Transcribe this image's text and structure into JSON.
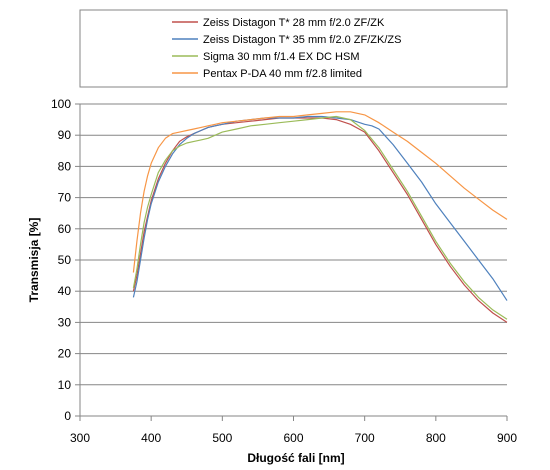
{
  "chart_data": {
    "type": "line",
    "xlabel": "Długość fali [nm]",
    "ylabel": "Transmisja [%]",
    "xlim": [
      300,
      900
    ],
    "ylim": [
      0,
      100
    ],
    "x_ticks": [
      300,
      400,
      500,
      600,
      700,
      800,
      900
    ],
    "y_ticks": [
      0,
      10,
      20,
      30,
      40,
      50,
      60,
      70,
      80,
      90,
      100
    ],
    "grid": "horizontal",
    "legend_position": "top",
    "series": [
      {
        "name": "Zeiss Distagon  T* 28 mm f/2.0 ZF/ZK",
        "color": "#c0504d",
        "x": [
          375,
          380,
          385,
          390,
          395,
          400,
          410,
          420,
          430,
          440,
          450,
          460,
          470,
          480,
          490,
          500,
          520,
          540,
          560,
          580,
          600,
          620,
          640,
          660,
          680,
          700,
          720,
          740,
          760,
          780,
          800,
          820,
          840,
          860,
          880,
          900
        ],
        "y": [
          40,
          45,
          52,
          59,
          64,
          69,
          76,
          81,
          85,
          88,
          89.5,
          90.5,
          91.5,
          92.5,
          93,
          93.5,
          94,
          94.5,
          95,
          95.5,
          95.5,
          95.5,
          95.5,
          95,
          93.5,
          91,
          85,
          78,
          71,
          63,
          55,
          48,
          42,
          37,
          33,
          30
        ]
      },
      {
        "name": "Zeiss Distagon  T* 35 mm f/2.0 ZF/ZK/ZS",
        "color": "#4f81bd",
        "x": [
          375,
          380,
          385,
          390,
          395,
          400,
          410,
          420,
          430,
          440,
          450,
          460,
          470,
          480,
          490,
          500,
          520,
          540,
          560,
          580,
          600,
          620,
          640,
          660,
          680,
          700,
          710,
          720,
          740,
          760,
          780,
          800,
          820,
          840,
          860,
          880,
          900
        ],
        "y": [
          38,
          43,
          50,
          57,
          63,
          68,
          75,
          80,
          84,
          87,
          89,
          90.5,
          91.5,
          92.5,
          93,
          93.5,
          94.5,
          95,
          95.5,
          95.5,
          95.5,
          96,
          96,
          95.5,
          95,
          93.5,
          93,
          92,
          87,
          81,
          75,
          68,
          62,
          56,
          50,
          44,
          37
        ]
      },
      {
        "name": "Sigma 30 mm f/1.4 EX DC HSM",
        "color": "#9bbb59",
        "x": [
          375,
          380,
          385,
          390,
          395,
          400,
          410,
          420,
          430,
          440,
          450,
          460,
          470,
          480,
          490,
          500,
          520,
          540,
          560,
          580,
          600,
          620,
          640,
          660,
          680,
          700,
          720,
          740,
          760,
          780,
          800,
          820,
          840,
          860,
          880,
          900
        ],
        "y": [
          41,
          47,
          55,
          62,
          67,
          71,
          78,
          82,
          85,
          86.5,
          87.5,
          88,
          88.5,
          89,
          90,
          91,
          92,
          93,
          93.5,
          94,
          94.5,
          95,
          95.5,
          96,
          95,
          91.5,
          86,
          79,
          72,
          64,
          56,
          49,
          43,
          38,
          34,
          31
        ]
      },
      {
        "name": "Pentax P-DA 40 mm f/2.8 limited",
        "color": "#f79646",
        "x": [
          375,
          380,
          385,
          390,
          395,
          400,
          410,
          420,
          430,
          440,
          450,
          460,
          470,
          480,
          490,
          500,
          520,
          540,
          560,
          580,
          600,
          620,
          640,
          660,
          680,
          700,
          720,
          740,
          760,
          780,
          800,
          820,
          840,
          860,
          880,
          900
        ],
        "y": [
          46,
          56,
          65,
          72,
          77,
          81,
          86,
          89,
          90.5,
          91,
          91.5,
          92,
          92.5,
          93,
          93.5,
          94,
          94.5,
          95,
          95.5,
          96,
          96,
          96.5,
          97,
          97.5,
          97.5,
          96.5,
          94,
          91,
          88,
          84.5,
          81,
          77,
          73,
          69.5,
          66,
          63
        ]
      }
    ]
  }
}
